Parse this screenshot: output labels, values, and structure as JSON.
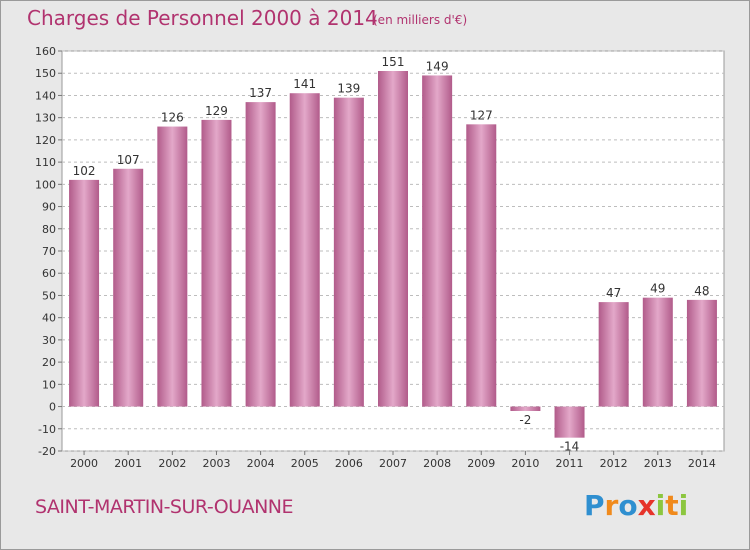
{
  "title": "Charges de Personnel 2000 à 2014",
  "subtitle": "(en milliers d'€)",
  "commune": "SAINT-MARTIN-SUR-OUANNE",
  "logo": {
    "letters": [
      "P",
      "r",
      "o",
      "x",
      "i",
      "t",
      "i"
    ],
    "colors": [
      "#2f8fd0",
      "#f08a1c",
      "#2f8fd0",
      "#e6332a",
      "#8cc63f",
      "#f08a1c",
      "#8cc63f"
    ]
  },
  "colors": {
    "bar": "#c06a98",
    "text": "#b1336f",
    "background": "#e8e8e8",
    "plot": "#ffffff"
  },
  "chart_data": {
    "type": "bar",
    "title": "Charges de Personnel 2000 à 2014",
    "ylim": [
      -20,
      160
    ],
    "ytick_step": 10,
    "grid": true,
    "categories": [
      "2000",
      "2001",
      "2002",
      "2003",
      "2004",
      "2005",
      "2006",
      "2007",
      "2008",
      "2009",
      "2010",
      "2011",
      "2012",
      "2013",
      "2014"
    ],
    "values": [
      102,
      107,
      126,
      129,
      137,
      141,
      139,
      151,
      149,
      127,
      -2,
      -14,
      47,
      49,
      48
    ]
  }
}
